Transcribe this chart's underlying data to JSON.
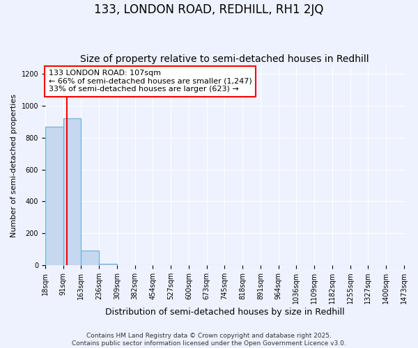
{
  "title": "133, LONDON ROAD, REDHILL, RH1 2JQ",
  "subtitle": "Size of property relative to semi-detached houses in Redhill",
  "xlabel": "Distribution of semi-detached houses by size in Redhill",
  "ylabel": "Number of semi-detached properties",
  "bin_edges": [
    18,
    91,
    163,
    236,
    309,
    382,
    454,
    527,
    600,
    673,
    745,
    818,
    891,
    964,
    1036,
    1109,
    1182,
    1255,
    1327,
    1400,
    1473
  ],
  "bar_heights": [
    870,
    920,
    90,
    10,
    0,
    0,
    0,
    0,
    0,
    0,
    0,
    0,
    0,
    0,
    0,
    0,
    0,
    0,
    0,
    0
  ],
  "bar_color": "#C5D8F0",
  "bar_edgecolor": "#6BAED6",
  "property_size": 107,
  "vline_color": "red",
  "annotation_line1": "133 LONDON ROAD: 107sqm",
  "annotation_line2": "← 66% of semi-detached houses are smaller (1,247)",
  "annotation_line3": "33% of semi-detached houses are larger (623) →",
  "annotation_box_edgecolor": "red",
  "annotation_box_facecolor": "white",
  "ylim": [
    0,
    1250
  ],
  "yticks": [
    0,
    200,
    400,
    600,
    800,
    1000,
    1200
  ],
  "footer_text": "Contains HM Land Registry data © Crown copyright and database right 2025.\nContains public sector information licensed under the Open Government Licence v3.0.",
  "bg_color": "#EEF2FF",
  "grid_color": "white",
  "title_fontsize": 12,
  "subtitle_fontsize": 10,
  "xlabel_fontsize": 9,
  "ylabel_fontsize": 8,
  "tick_fontsize": 7,
  "annotation_fontsize": 8,
  "footer_fontsize": 6.5
}
